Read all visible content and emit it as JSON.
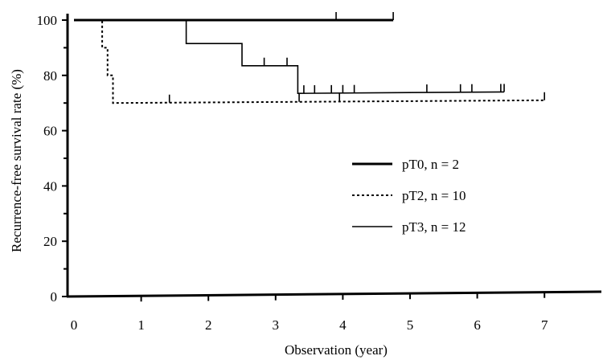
{
  "chart_data": {
    "type": "line",
    "subtype": "kaplan-meier step",
    "title": "",
    "xlabel": "Observation (year)",
    "ylabel": "Recurrence-free survival rate (%)",
    "xlim": [
      0,
      7.8
    ],
    "ylim": [
      0,
      100
    ],
    "x_ticks": [
      0,
      1,
      2,
      3,
      4,
      5,
      6,
      7
    ],
    "y_ticks": [
      0,
      20,
      40,
      60,
      80,
      100
    ],
    "grid": false,
    "legend_position": "right-middle",
    "series": [
      {
        "name": "pT0, n = 2",
        "style": "thick-solid",
        "steps": [
          [
            0,
            100
          ],
          [
            4.75,
            100
          ]
        ],
        "censored": [
          3.9,
          4.75
        ]
      },
      {
        "name": "pT2, n = 10",
        "style": "dotted",
        "steps": [
          [
            0,
            100
          ],
          [
            0.42,
            100
          ],
          [
            0.42,
            90
          ],
          [
            0.5,
            90
          ],
          [
            0.5,
            80
          ],
          [
            0.58,
            80
          ],
          [
            0.58,
            70
          ],
          [
            7.0,
            71
          ]
        ],
        "censored": [
          1.42,
          3.35,
          3.95,
          7.0
        ]
      },
      {
        "name": "pT3, n = 12",
        "style": "thin-solid",
        "steps": [
          [
            0,
            100
          ],
          [
            1.67,
            100
          ],
          [
            1.67,
            91.5
          ],
          [
            2.5,
            91.5
          ],
          [
            2.5,
            83.5
          ],
          [
            3.33,
            83.5
          ],
          [
            3.33,
            73.5
          ],
          [
            6.4,
            74
          ]
        ],
        "censored": [
          2.83,
          3.17,
          3.42,
          3.58,
          3.83,
          4.0,
          4.17,
          5.25,
          5.75,
          5.92,
          6.35,
          6.4
        ]
      }
    ]
  }
}
